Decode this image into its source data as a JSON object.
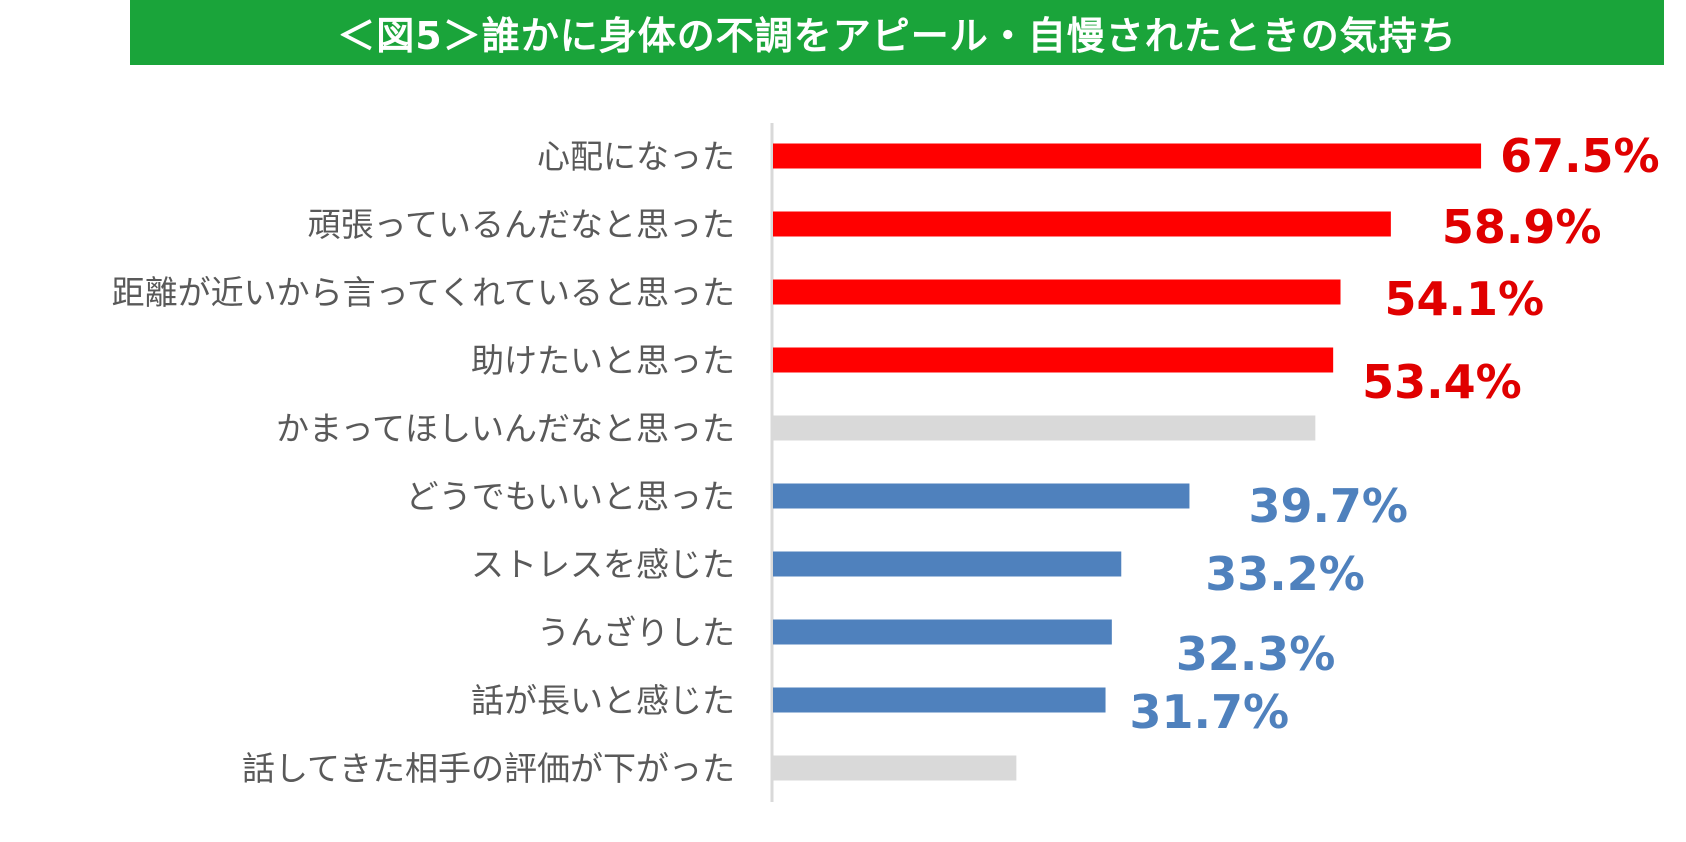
{
  "title": "＜図5＞誰かに身体の不調をアピール・自慢されたときの気持ち",
  "colors": {
    "title_bg": "#1aa43a",
    "red": "#ff0000",
    "red_label": "#e00000",
    "blue": "#4f81bd",
    "blue_label": "#4f81bd",
    "gray": "#d9d9d9",
    "axis": "#d9d9d9"
  },
  "chart_data": {
    "type": "bar",
    "orientation": "horizontal",
    "xlim": [
      0,
      70
    ],
    "grid": false,
    "categories": [
      "心配になった",
      "頑張っているんだなと思った",
      "距離が近いから言ってくれていると思った",
      "助けたいと思った",
      "かまってほしいんだなと思った",
      "どうでもいいと思った",
      "ストレスを感じた",
      "うんざりした",
      "話が長いと感じた",
      "話してきた相手の評価が下がった"
    ],
    "values": [
      67.5,
      58.9,
      54.1,
      53.4,
      51.7,
      39.7,
      33.2,
      32.3,
      31.7,
      23.2
    ],
    "labels": [
      "67.5%",
      "58.9%",
      "54.1%",
      "53.4%",
      "",
      "39.7%",
      "33.2%",
      "32.3%",
      "31.7%",
      ""
    ],
    "bar_colors": [
      "red",
      "red",
      "red",
      "red",
      "gray",
      "blue",
      "blue",
      "blue",
      "blue",
      "gray"
    ]
  }
}
